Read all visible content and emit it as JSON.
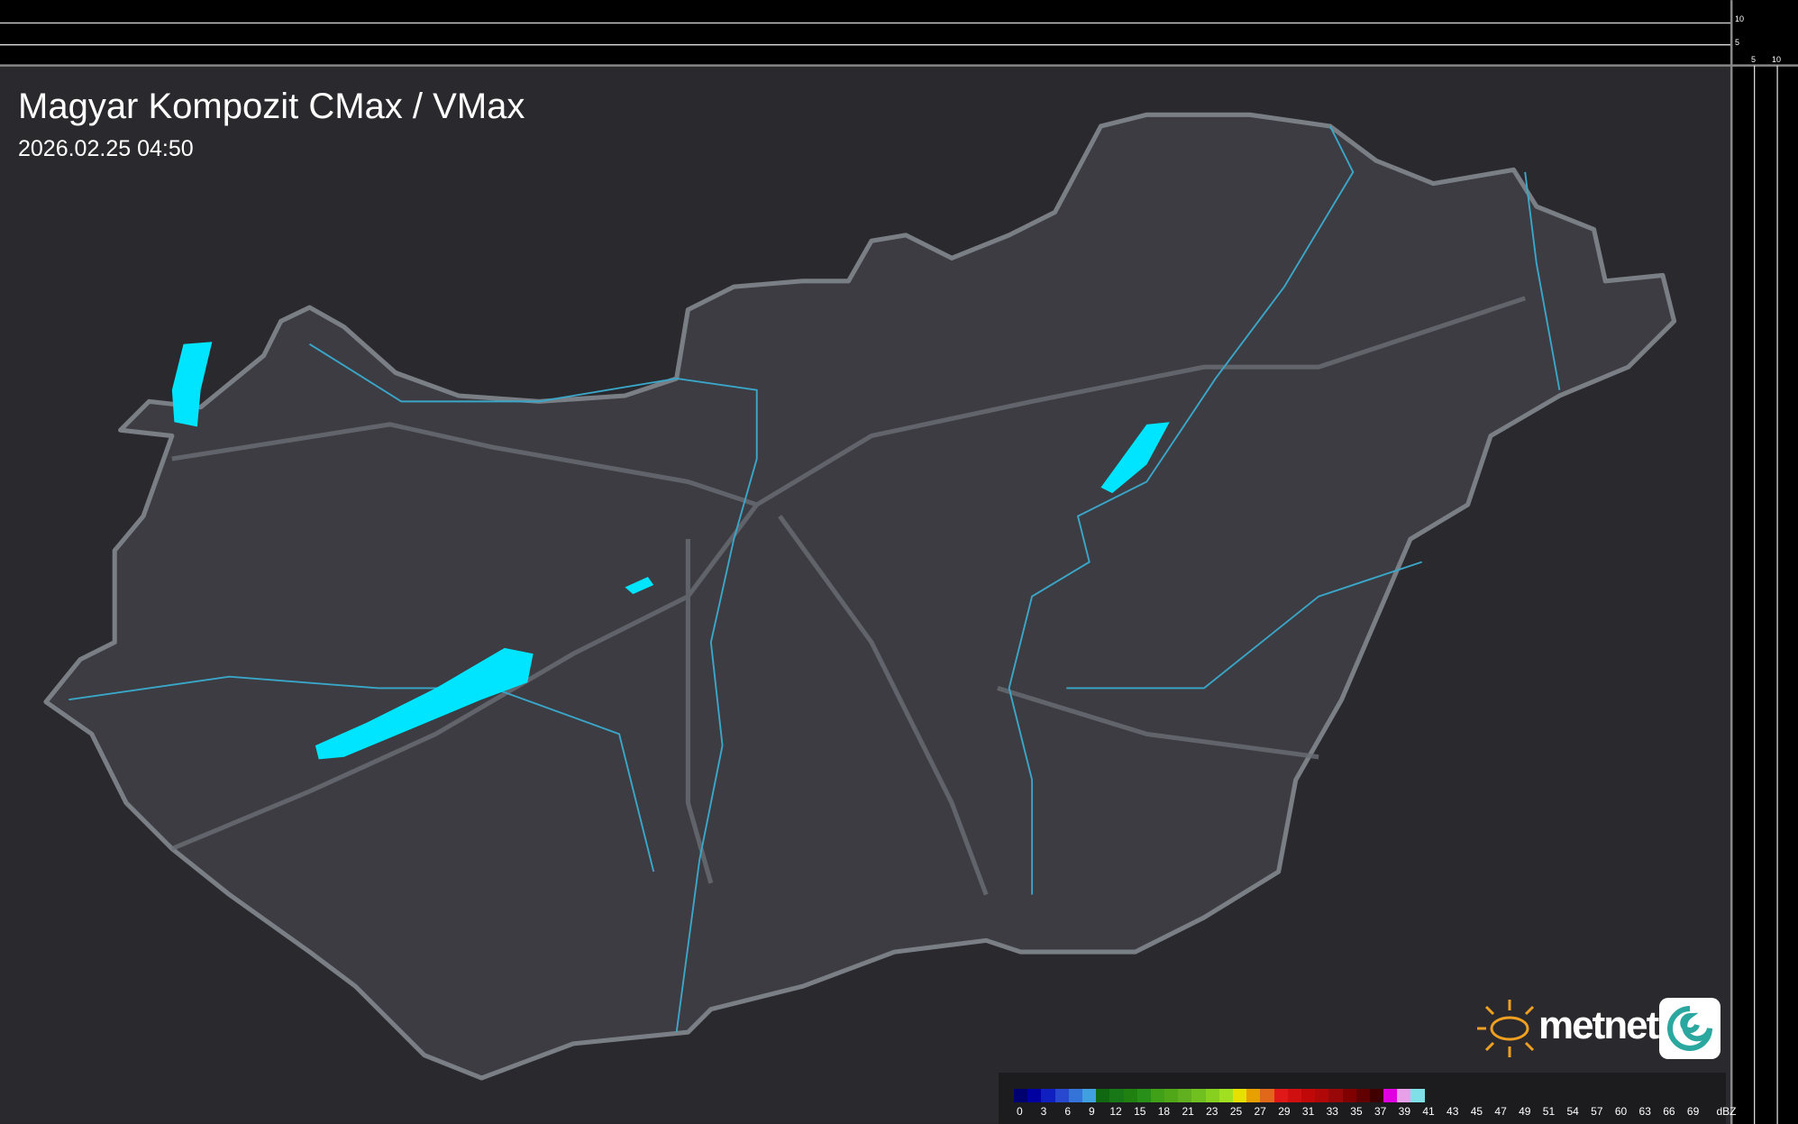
{
  "header": {
    "title": "Magyar Kompozit CMax / VMax",
    "timestamp": "2026.02.25 04:50"
  },
  "side_profile": {
    "y_ticks": [
      "10",
      "5"
    ],
    "x_ticks": [
      "5",
      "10"
    ]
  },
  "legend": {
    "unit": "dBZ",
    "labels": [
      "0",
      "3",
      "6",
      "9",
      "12",
      "15",
      "18",
      "21",
      "23",
      "25",
      "27",
      "29",
      "31",
      "33",
      "35",
      "37",
      "39",
      "41",
      "43",
      "45",
      "47",
      "49",
      "51",
      "54",
      "57",
      "60",
      "63",
      "66",
      "69"
    ],
    "colors": [
      "#000070",
      "#0000a0",
      "#1020c0",
      "#2848d0",
      "#3474d8",
      "#40a0e0",
      "#106810",
      "#187818",
      "#208010",
      "#289018",
      "#40a018",
      "#50a818",
      "#60b020",
      "#70c020",
      "#88d020",
      "#a0e020",
      "#e8e000",
      "#e8a000",
      "#e06818",
      "#e01818",
      "#d01010",
      "#c00808",
      "#b00808",
      "#980808",
      "#800000",
      "#600000",
      "#400000",
      "#e000e0",
      "#e8a0e8",
      "#80e0e8"
    ]
  },
  "logo": {
    "text": "metnet"
  },
  "colors": {
    "background": "#2a2a2e",
    "country": "#3c3c42",
    "border": "#7a7f86",
    "water": "#00e5ff",
    "river": "#3aa6c8"
  }
}
